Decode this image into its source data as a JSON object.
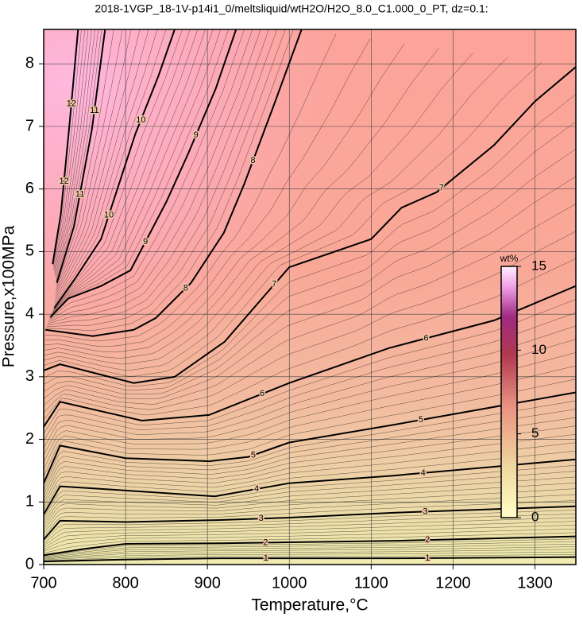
{
  "chart_data": {
    "type": "contour",
    "title": "2018-1VGP_18-1V-p14i1_0/meltsliquid/wtH2O/H2O_8.0_C1.000_0_PT, dz=0.1:",
    "x_label": "Temperature,°C",
    "y_label": "Pressure,x100MPa",
    "xlim": [
      700,
      1350
    ],
    "ylim": [
      0,
      8.55
    ],
    "xticks": [
      700,
      800,
      900,
      1000,
      1100,
      1200,
      1300
    ],
    "yticks": [
      0,
      1,
      2,
      3,
      4,
      5,
      6,
      7,
      8
    ],
    "grid": true,
    "colorbar": {
      "label": "wt%",
      "lim": [
        0,
        15
      ],
      "ticks": [
        0,
        5,
        10,
        15
      ]
    },
    "contours": [
      {
        "level": 1,
        "x": [
          700,
          800,
          917,
          1000,
          1135,
          1350
        ],
        "y": [
          0.05,
          0.08,
          0.1,
          0.1,
          0.1,
          0.12
        ]
      },
      {
        "level": 2,
        "x": [
          700,
          750,
          800,
          917,
          1131,
          1350
        ],
        "y": [
          0.15,
          0.25,
          0.33,
          0.34,
          0.38,
          0.45
        ]
      },
      {
        "level": 3,
        "x": [
          700,
          720,
          800,
          912,
          1000,
          1130,
          1350
        ],
        "y": [
          0.4,
          0.7,
          0.68,
          0.71,
          0.75,
          0.83,
          0.93
        ]
      },
      {
        "level": 4,
        "x": [
          700,
          720,
          780,
          909,
          1000,
          1127,
          1350
        ],
        "y": [
          0.8,
          1.25,
          1.2,
          1.09,
          1.3,
          1.42,
          1.68
        ]
      },
      {
        "level": 5,
        "x": [
          700,
          720,
          800,
          902,
          950,
          1000,
          1126,
          1350
        ],
        "y": [
          1.3,
          1.9,
          1.7,
          1.65,
          1.72,
          1.95,
          2.23,
          2.75
        ]
      },
      {
        "level": 6,
        "x": [
          700,
          720,
          820,
          902,
          1000,
          1122,
          1250,
          1350
        ],
        "y": [
          2.2,
          2.6,
          2.3,
          2.39,
          2.9,
          3.46,
          3.9,
          4.45
        ]
      },
      {
        "level": 7,
        "x": [
          700,
          720,
          810,
          860,
          921,
          970,
          1000,
          1100,
          1137,
          1180,
          1250,
          1300,
          1350
        ],
        "y": [
          3.1,
          3.2,
          2.9,
          3.0,
          3.56,
          4.3,
          4.75,
          5.2,
          5.7,
          5.95,
          6.7,
          7.4,
          7.95
        ]
      },
      {
        "level": 8,
        "x": [
          702,
          760,
          810,
          837,
          880,
          920,
          945,
          980,
          1015
        ],
        "y": [
          3.75,
          3.65,
          3.75,
          3.94,
          4.5,
          5.3,
          6.08,
          7.3,
          8.55
        ]
      },
      {
        "level": 9,
        "x": [
          708,
          730,
          770,
          806,
          850,
          876,
          910,
          935
        ],
        "y": [
          3.95,
          4.25,
          4.45,
          4.7,
          5.8,
          6.55,
          7.6,
          8.55
        ]
      },
      {
        "level": 10,
        "x": [
          713,
          740,
          770,
          812,
          840,
          860
        ],
        "y": [
          4.1,
          4.6,
          5.2,
          6.88,
          7.8,
          8.55
        ]
      },
      {
        "level": 11,
        "x": [
          716,
          737,
          759,
          775
        ],
        "y": [
          4.5,
          5.4,
          6.96,
          8.55
        ]
      },
      {
        "level": 12,
        "x": [
          711,
          721,
          732,
          742
        ],
        "y": [
          4.8,
          5.6,
          7.1,
          8.55
        ]
      }
    ]
  }
}
